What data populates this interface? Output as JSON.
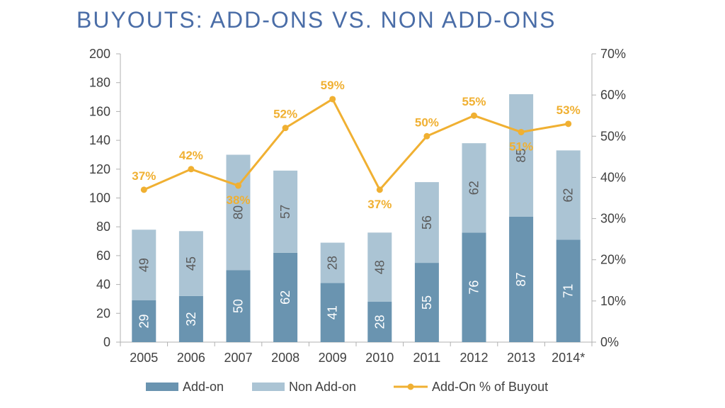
{
  "title": "BUYOUTS: ADD-ONS VS. NON ADD-ONS",
  "colors": {
    "addon": "#6a94b0",
    "nonaddon": "#abc4d4",
    "line": "#f0b032",
    "title": "#4a6da7",
    "axis": "#404040"
  },
  "chart_data": {
    "type": "bar",
    "stacked": true,
    "categories": [
      "2005",
      "2006",
      "2007",
      "2008",
      "2009",
      "2010",
      "2011",
      "2012",
      "2013",
      "2014*"
    ],
    "series": [
      {
        "name": "Add-on",
        "values": [
          29,
          32,
          50,
          62,
          41,
          28,
          55,
          76,
          87,
          71
        ]
      },
      {
        "name": "Non Add-on",
        "values": [
          49,
          45,
          80,
          57,
          28,
          48,
          56,
          62,
          85,
          62
        ]
      }
    ],
    "line_series": {
      "name": "Add-On % of Buyout",
      "axis": "right",
      "values": [
        37,
        42,
        38,
        52,
        59,
        37,
        50,
        55,
        51,
        53
      ],
      "labels": [
        "37%",
        "42%",
        "38%",
        "52%",
        "59%",
        "37%",
        "50%",
        "55%",
        "51%",
        "53%"
      ]
    },
    "ylim_left": [
      0,
      200
    ],
    "yticks_left": [
      "0",
      "20",
      "40",
      "60",
      "80",
      "100",
      "120",
      "140",
      "160",
      "180",
      "200"
    ],
    "ylim_right": [
      0,
      70
    ],
    "yticks_right": [
      "0%",
      "10%",
      "20%",
      "30%",
      "40%",
      "50%",
      "60%",
      "70%"
    ],
    "legend_position": "bottom",
    "legend": [
      "Add-on",
      "Non Add-on",
      "Add-On % of Buyout"
    ]
  }
}
